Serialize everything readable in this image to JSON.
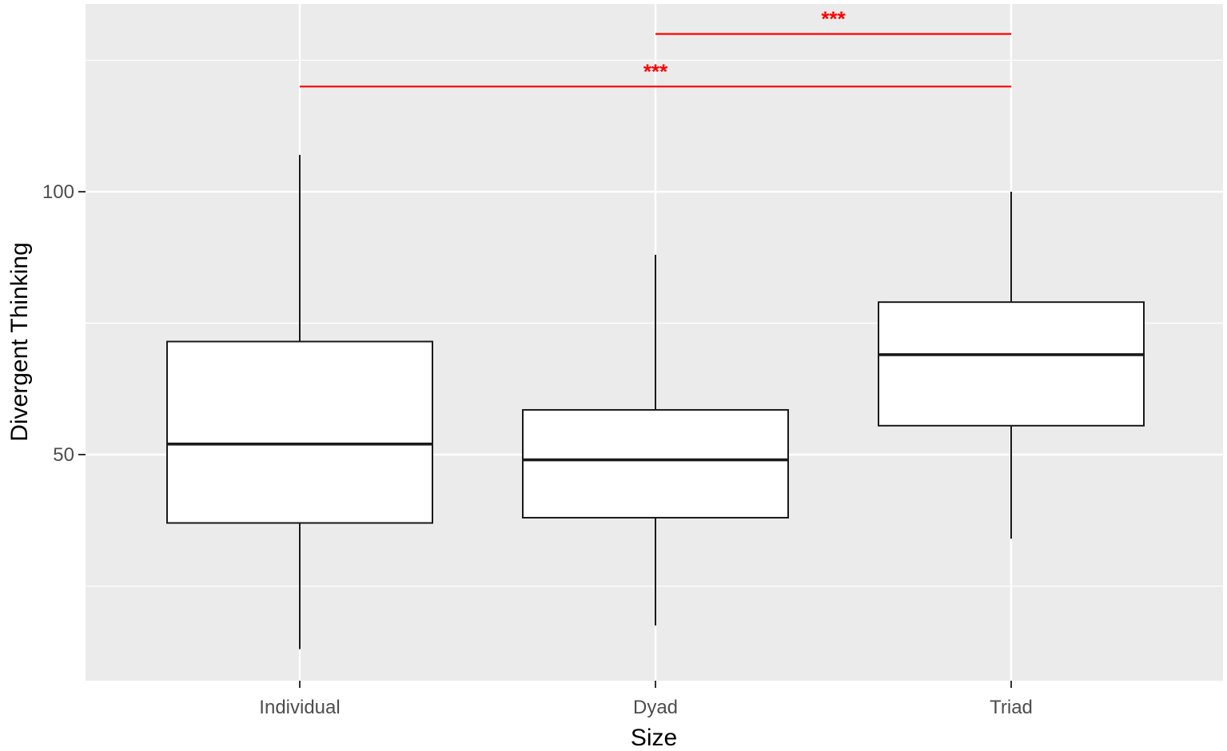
{
  "chart_data": {
    "type": "boxplot",
    "xlabel": "Size",
    "ylabel": "Divergent Thinking",
    "categories": [
      "Individual",
      "Dyad",
      "Triad"
    ],
    "boxes": [
      {
        "category": "Individual",
        "whisker_low": 13,
        "q1": 37,
        "median": 52,
        "q3": 71.5,
        "whisker_high": 107
      },
      {
        "category": "Dyad",
        "whisker_low": 17.5,
        "q1": 38,
        "median": 49,
        "q3": 58.5,
        "whisker_high": 88
      },
      {
        "category": "Triad",
        "whisker_low": 34,
        "q1": 55.5,
        "median": 69,
        "q3": 79,
        "whisker_high": 100
      }
    ],
    "significance": [
      {
        "from": "Individual",
        "to": "Triad",
        "y": 120,
        "label": "***"
      },
      {
        "from": "Dyad",
        "to": "Triad",
        "y": 130,
        "label": "***"
      }
    ],
    "ylim": [
      7,
      135.7
    ],
    "y_ticks": [
      50,
      100
    ],
    "y_minor_ticks": [
      25,
      75,
      125
    ],
    "grid": true,
    "colors": {
      "panel": "#ebebeb",
      "grid": "#ffffff",
      "box_fill": "#ffffff",
      "box_stroke": "#1a1a1a",
      "significance": "#ff0000"
    }
  }
}
